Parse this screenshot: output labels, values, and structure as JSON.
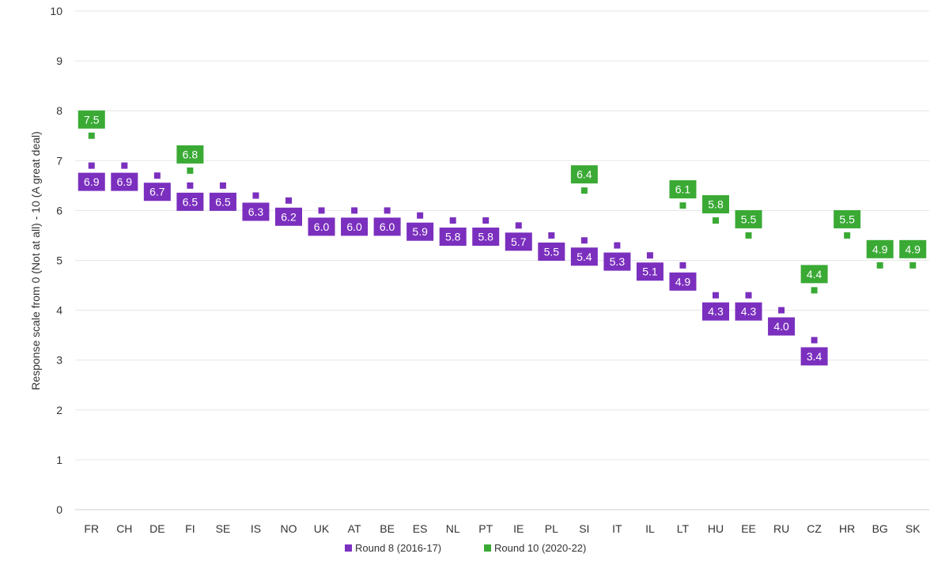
{
  "chart_data": {
    "type": "scatter",
    "ylabel": "Response scale from 0 (Not at all) - 10 (A great deal)",
    "ylim": [
      0,
      10
    ],
    "yticks": [
      "0",
      "1",
      "2",
      "3",
      "4",
      "5",
      "6",
      "7",
      "8",
      "9",
      "10"
    ],
    "grid": "horizontal",
    "legend_position": "bottom",
    "categories": [
      "FR",
      "CH",
      "DE",
      "FI",
      "SE",
      "IS",
      "NO",
      "UK",
      "AT",
      "BE",
      "ES",
      "NL",
      "PT",
      "IE",
      "PL",
      "SI",
      "IT",
      "IL",
      "LT",
      "HU",
      "EE",
      "RU",
      "CZ",
      "HR",
      "BG",
      "SK"
    ],
    "series": [
      {
        "name": "Round 8 (2016-17)",
        "color": "#7b2fbe",
        "values": [
          6.9,
          6.9,
          6.7,
          6.5,
          6.5,
          6.3,
          6.2,
          6.0,
          6.0,
          6.0,
          5.9,
          5.8,
          5.8,
          5.7,
          5.5,
          5.4,
          5.3,
          5.1,
          4.9,
          4.3,
          4.3,
          4.0,
          3.4,
          null,
          null,
          null
        ],
        "labels": [
          "6.9",
          "6.9",
          "6.7",
          "6.5",
          "6.5",
          "6.3",
          "6.2",
          "6.0",
          "6.0",
          "6.0",
          "5.9",
          "5.8",
          "5.8",
          "5.7",
          "5.5",
          "5.4",
          "5.3",
          "5.1",
          "4.9",
          "4.3",
          "4.3",
          "4.0",
          "3.4",
          null,
          null,
          null
        ],
        "label_position": "below"
      },
      {
        "name": "Round 10 (2020-22)",
        "color": "#3aaa35",
        "values": [
          7.5,
          null,
          null,
          6.8,
          null,
          null,
          null,
          null,
          null,
          null,
          null,
          null,
          null,
          null,
          null,
          6.4,
          null,
          null,
          6.1,
          5.8,
          5.5,
          null,
          4.4,
          5.5,
          4.9,
          4.9
        ],
        "labels": [
          "7.5",
          null,
          null,
          "6.8",
          null,
          null,
          null,
          null,
          null,
          null,
          null,
          null,
          null,
          null,
          null,
          "6.4",
          null,
          null,
          "6.1",
          "5.8",
          "5.5",
          null,
          "4.4",
          "5.5",
          "4.9",
          "4.9"
        ],
        "label_position": "above"
      }
    ]
  },
  "legend": {
    "items": [
      {
        "label": "Round 8 (2016-17)",
        "color": "#7b2fbe"
      },
      {
        "label": "Round 10 (2020-22)",
        "color": "#3aaa35"
      }
    ]
  }
}
